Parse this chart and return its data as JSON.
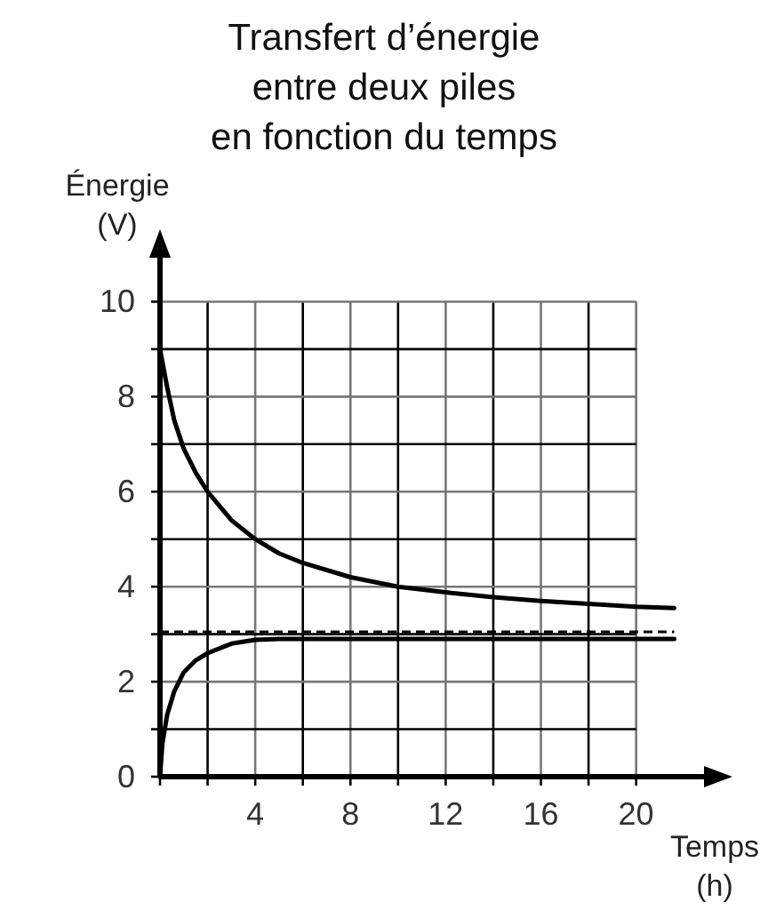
{
  "chart_data": {
    "type": "line",
    "title": "Transfert d’énergie\nentre deux piles\nen fonction du temps",
    "xlabel": "Temps\n(h)",
    "ylabel": "Énergie\n(V)",
    "xlim": [
      0,
      23
    ],
    "ylim": [
      0,
      11
    ],
    "xticks": [
      {
        "value": 0,
        "label": null
      },
      {
        "value": 2,
        "label": null
      },
      4,
      {
        "value": 6,
        "label": null
      },
      8,
      {
        "value": 10,
        "label": null
      },
      12,
      {
        "value": 14,
        "label": null
      },
      16,
      {
        "value": 18,
        "label": null
      },
      20
    ],
    "yticks": [
      0,
      {
        "value": 1,
        "label": null
      },
      2,
      {
        "value": 3,
        "label": null
      },
      4,
      {
        "value": 5,
        "label": null
      },
      6,
      {
        "value": 7,
        "label": null
      },
      8,
      {
        "value": 9,
        "label": null
      },
      10
    ],
    "grid": true,
    "line_style": "solid",
    "marker": "none",
    "series": [
      {
        "color": "#000000",
        "x": [
          0,
          0.3,
          0.6,
          1,
          1.5,
          2,
          2.5,
          3,
          4,
          5,
          6,
          8,
          10,
          12,
          14,
          16,
          18,
          20,
          21.6
        ],
        "values": [
          9,
          8.2,
          7.5,
          6.9,
          6.4,
          6,
          5.7,
          5.4,
          5,
          4.7,
          4.5,
          4.2,
          4,
          3.88,
          3.78,
          3.7,
          3.64,
          3.58,
          3.55
        ]
      },
      {
        "color": "#000000",
        "x": [
          0,
          0.1,
          0.3,
          0.6,
          1,
          1.5,
          2,
          3,
          4,
          5,
          8,
          12,
          16,
          20,
          21.6
        ],
        "values": [
          0,
          0.7,
          1.3,
          1.8,
          2.2,
          2.45,
          2.6,
          2.8,
          2.88,
          2.9,
          2.9,
          2.9,
          2.9,
          2.9,
          2.9
        ]
      }
    ],
    "ref_lines": [
      {
        "axis": "y",
        "value": 3.05,
        "line_style": "dashed",
        "color": "#000000"
      }
    ]
  }
}
